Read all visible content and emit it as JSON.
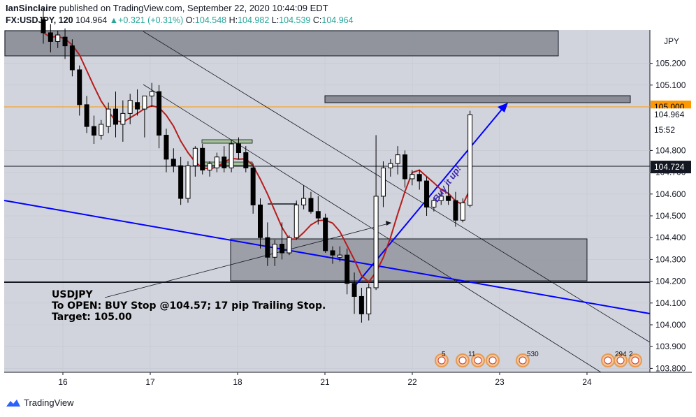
{
  "header": {
    "author": "IanSinclaire",
    "published_text": "published on TradingView.com, September 22, 2020 10:44:09 EDT",
    "symbol": "FX:USDJPY, 120",
    "last": "104.964",
    "change": "+0.321 (+0.31%)",
    "o_label": "O:",
    "o_value": "104.548",
    "h_label": "H:",
    "h_value": "104.982",
    "l_label": "L:",
    "l_value": "104.539",
    "c_label": "C:",
    "c_value": "104.964"
  },
  "note": {
    "line1": "USDJPY",
    "line2": "To OPEN: BUY Stop @104.57; 17 pip Trailing Stop.",
    "line3": "Target: 105.00"
  },
  "arrow_label": "Buy it up!",
  "price_tags": [
    {
      "value": "105.000",
      "price": 105.0,
      "bg": "#ff9800",
      "fg": "#000000"
    },
    {
      "value": "104.964",
      "price": 104.964,
      "bg": "#ffffff",
      "fg": "#131722"
    },
    {
      "value": "15:52",
      "price": 104.895,
      "bg": "#ffffff",
      "fg": "#131722"
    },
    {
      "value": "104.724",
      "price": 104.724,
      "bg": "#131722",
      "fg": "#ffffff"
    }
  ],
  "event_counts": [
    "5",
    "11",
    "530",
    "294",
    "2"
  ],
  "footer": {
    "brand": "TradingView"
  },
  "colors": {
    "bg": "#d1d4dc",
    "up": "#ffffff",
    "down": "#000000",
    "ma": "#b71c1c",
    "trend": "#0000ff",
    "orange": "#ff9800"
  },
  "chart_data": {
    "type": "candlestick",
    "symbol": "FX:USDJPY",
    "interval": "120",
    "y_ticks": [
      103.8,
      103.9,
      104.0,
      104.1,
      104.2,
      104.3,
      104.4,
      104.5,
      104.6,
      104.7,
      104.8,
      105.1,
      105.2
    ],
    "y_tick_labels": [
      "103.800",
      "103.900",
      "104.000",
      "104.100",
      "104.200",
      "104.300",
      "104.400",
      "104.500",
      "104.600",
      "104.700",
      "104.800",
      "105.100",
      "105.200"
    ],
    "y_axis_title": "JPY",
    "x_tick_labels": [
      "16",
      "17",
      "18",
      "21",
      "22",
      "23",
      "24"
    ],
    "candles": [
      [
        105.4,
        105.45,
        105.29,
        105.34
      ],
      [
        105.34,
        105.38,
        105.25,
        105.3
      ],
      [
        105.3,
        105.35,
        105.27,
        105.33
      ],
      [
        105.32,
        105.36,
        105.22,
        105.28
      ],
      [
        105.28,
        105.31,
        105.14,
        105.17
      ],
      [
        105.17,
        105.19,
        104.96,
        105.01
      ],
      [
        105.01,
        105.05,
        104.88,
        104.91
      ],
      [
        104.91,
        104.96,
        104.83,
        104.87
      ],
      [
        104.87,
        104.94,
        104.85,
        104.92
      ],
      [
        104.91,
        105.02,
        104.88,
        104.99
      ],
      [
        104.99,
        105.07,
        104.86,
        104.92
      ],
      [
        104.92,
        105.03,
        104.84,
        104.97
      ],
      [
        104.97,
        105.06,
        104.92,
        105.03
      ],
      [
        105.02,
        105.08,
        104.96,
        104.99
      ],
      [
        104.99,
        105.04,
        104.86,
        105.05
      ],
      [
        105.05,
        105.11,
        105.0,
        105.07
      ],
      [
        105.07,
        105.1,
        104.81,
        104.87
      ],
      [
        104.87,
        104.9,
        104.7,
        104.76
      ],
      [
        104.76,
        104.81,
        104.7,
        104.73
      ],
      [
        104.73,
        104.77,
        104.55,
        104.58
      ],
      [
        104.58,
        104.75,
        104.56,
        104.73
      ],
      [
        104.73,
        104.82,
        104.68,
        104.81
      ],
      [
        104.81,
        104.83,
        104.69,
        104.71
      ],
      [
        104.71,
        104.75,
        104.68,
        104.74
      ],
      [
        104.72,
        104.79,
        104.7,
        104.77
      ],
      [
        104.77,
        104.82,
        104.7,
        104.72
      ],
      [
        104.72,
        104.85,
        104.7,
        104.83
      ],
      [
        104.83,
        104.86,
        104.76,
        104.79
      ],
      [
        104.79,
        104.82,
        104.7,
        104.72
      ],
      [
        104.72,
        104.74,
        104.51,
        104.55
      ],
      [
        104.55,
        104.58,
        104.35,
        104.4
      ],
      [
        104.4,
        104.47,
        104.27,
        104.31
      ],
      [
        104.31,
        104.39,
        104.27,
        104.37
      ],
      [
        104.37,
        104.47,
        104.3,
        104.33
      ],
      [
        104.33,
        104.41,
        104.32,
        104.4
      ],
      [
        104.4,
        104.57,
        104.39,
        104.55
      ],
      [
        104.55,
        104.64,
        104.53,
        104.58
      ],
      [
        104.58,
        104.61,
        104.51,
        104.52
      ],
      [
        104.52,
        104.59,
        104.46,
        104.49
      ],
      [
        104.49,
        104.51,
        104.33,
        104.34
      ],
      [
        104.34,
        104.36,
        104.28,
        104.32
      ],
      [
        104.31,
        104.36,
        104.29,
        104.32
      ],
      [
        104.32,
        104.35,
        104.14,
        104.19
      ],
      [
        104.19,
        104.24,
        104.05,
        104.13
      ],
      [
        104.13,
        104.17,
        104.01,
        104.05
      ],
      [
        104.05,
        104.19,
        104.02,
        104.17
      ],
      [
        104.17,
        104.87,
        104.16,
        104.59
      ],
      [
        104.59,
        104.75,
        104.54,
        104.72
      ],
      [
        104.72,
        104.76,
        104.68,
        104.74
      ],
      [
        104.74,
        104.82,
        104.69,
        104.78
      ],
      [
        104.78,
        104.8,
        104.63,
        104.67
      ],
      [
        104.67,
        104.71,
        104.64,
        104.69
      ],
      [
        104.69,
        104.71,
        104.62,
        104.66
      ],
      [
        104.66,
        104.68,
        104.5,
        104.54
      ],
      [
        104.54,
        104.58,
        104.52,
        104.57
      ],
      [
        104.57,
        104.61,
        104.55,
        104.59
      ],
      [
        104.59,
        104.64,
        104.55,
        104.57
      ],
      [
        104.57,
        104.61,
        104.45,
        104.48
      ],
      [
        104.48,
        104.58,
        104.47,
        104.56
      ],
      [
        104.548,
        104.982,
        104.539,
        104.964
      ]
    ]
  }
}
